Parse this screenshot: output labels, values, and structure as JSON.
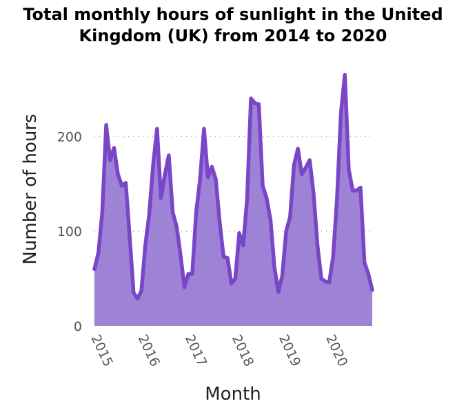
{
  "chart_data": {
    "type": "area",
    "title_lines": [
      "Total monthly hours of sunlight in the United",
      "Kingdom (UK) from 2014 to 2020"
    ],
    "xlabel": "Month",
    "ylabel": "Number of hours",
    "x_ticks": [
      "2015",
      "2016",
      "2017",
      "2018",
      "2019",
      "2020"
    ],
    "y_ticks": [
      "0",
      "100",
      "200"
    ],
    "ylim": [
      0,
      280
    ],
    "grid": "horizontal dotted",
    "color": "#7a46c8",
    "fill_color": "#9d82d6",
    "x": [
      "2015-01",
      "2015-02",
      "2015-03",
      "2015-04",
      "2015-05",
      "2015-06",
      "2015-07",
      "2015-08",
      "2015-09",
      "2015-10",
      "2015-11",
      "2015-12",
      "2016-01",
      "2016-02",
      "2016-03",
      "2016-04",
      "2016-05",
      "2016-06",
      "2016-07",
      "2016-08",
      "2016-09",
      "2016-10",
      "2016-11",
      "2016-12",
      "2017-01",
      "2017-02",
      "2017-03",
      "2017-04",
      "2017-05",
      "2017-06",
      "2017-07",
      "2017-08",
      "2017-09",
      "2017-10",
      "2017-11",
      "2017-12",
      "2018-01",
      "2018-02",
      "2018-03",
      "2018-04",
      "2018-05",
      "2018-06",
      "2018-07",
      "2018-08",
      "2018-09",
      "2018-10",
      "2018-11",
      "2018-12",
      "2019-01",
      "2019-02",
      "2019-03",
      "2019-04",
      "2019-05",
      "2019-06",
      "2019-07",
      "2019-08",
      "2019-09",
      "2019-10",
      "2019-11",
      "2019-12",
      "2020-01",
      "2020-02",
      "2020-03",
      "2020-04",
      "2020-05",
      "2020-06",
      "2020-07",
      "2020-08",
      "2020-09",
      "2020-10",
      "2020-11",
      "2020-12"
    ],
    "values": [
      60,
      77,
      120,
      212,
      175,
      188,
      160,
      148,
      151,
      95,
      35,
      29,
      37,
      85,
      118,
      170,
      208,
      135,
      160,
      180,
      120,
      105,
      75,
      41,
      55,
      55,
      120,
      155,
      208,
      157,
      168,
      155,
      110,
      73,
      72,
      45,
      50,
      98,
      85,
      133,
      240,
      235,
      234,
      148,
      135,
      112,
      62,
      36,
      53,
      100,
      115,
      170,
      187,
      160,
      167,
      175,
      140,
      85,
      50,
      47,
      46,
      73,
      135,
      225,
      265,
      165,
      143,
      143,
      146,
      67,
      55,
      38
    ]
  }
}
